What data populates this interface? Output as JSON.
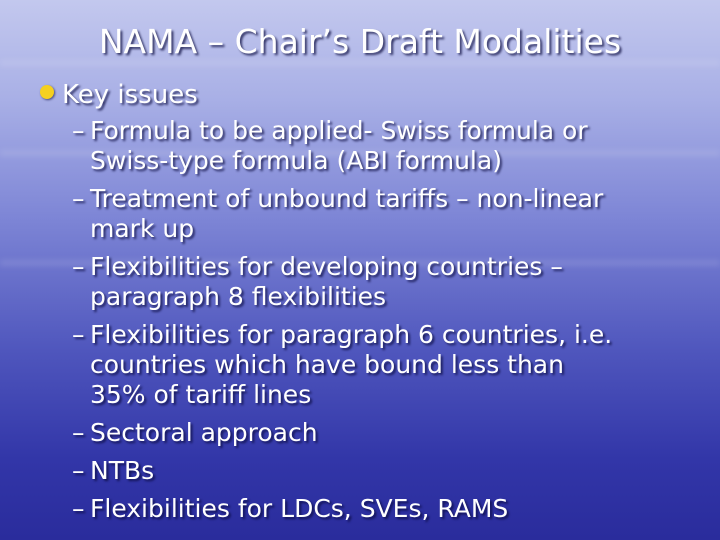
{
  "title": "NAMA – Chair’s Draft Modalities",
  "bullet_color": "#f5d020",
  "level1": {
    "icon": "yellow-dot-bullet",
    "text": "Key issues"
  },
  "dash": "–",
  "items": [
    {
      "lines": [
        "Formula to be applied- Swiss formula or",
        "Swiss-type formula (ABI formula)"
      ]
    },
    {
      "lines": [
        "Treatment of unbound tariffs – non-linear",
        "mark up"
      ]
    },
    {
      "lines": [
        "Flexibilities for developing countries –",
        "paragraph 8 flexibilities"
      ]
    },
    {
      "lines": [
        "Flexibilities for paragraph 6 countries, i.e.",
        "countries which have bound less than",
        "35% of tariff lines"
      ]
    },
    {
      "lines": [
        "Sectoral approach"
      ]
    },
    {
      "lines": [
        "NTBs"
      ]
    },
    {
      "lines": [
        "Flexibilities for LDCs, SVEs, RAMS"
      ]
    }
  ]
}
